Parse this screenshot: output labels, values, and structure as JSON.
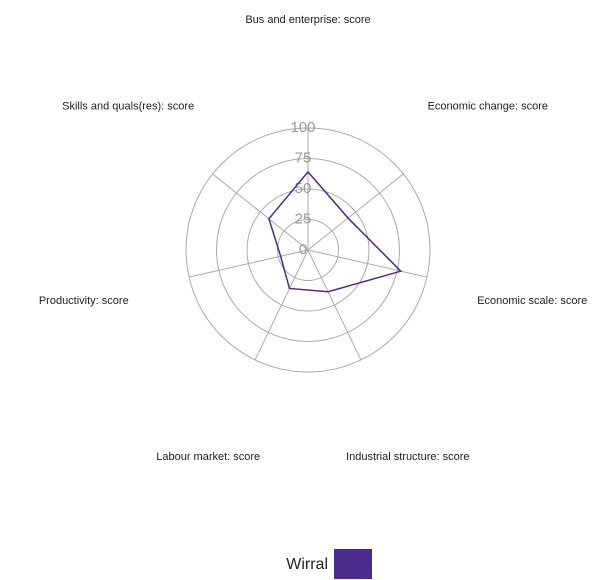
{
  "chart_data": {
    "type": "radar",
    "categories": [
      "Bus and enterprise: score",
      "Economic change: score",
      "Economic scale: score",
      "Industrial structure: score",
      "Labour market: score",
      "Productivity: score",
      "Skills and quals(res): score"
    ],
    "series": [
      {
        "name": "Wirral",
        "color": "#4b2c8c",
        "values": [
          64,
          42,
          78,
          38,
          35,
          23,
          41
        ]
      }
    ],
    "ylim": [
      0,
      100
    ],
    "yticks": [
      0,
      25,
      50,
      75,
      100
    ],
    "grid": true,
    "legend": "bottom"
  }
}
